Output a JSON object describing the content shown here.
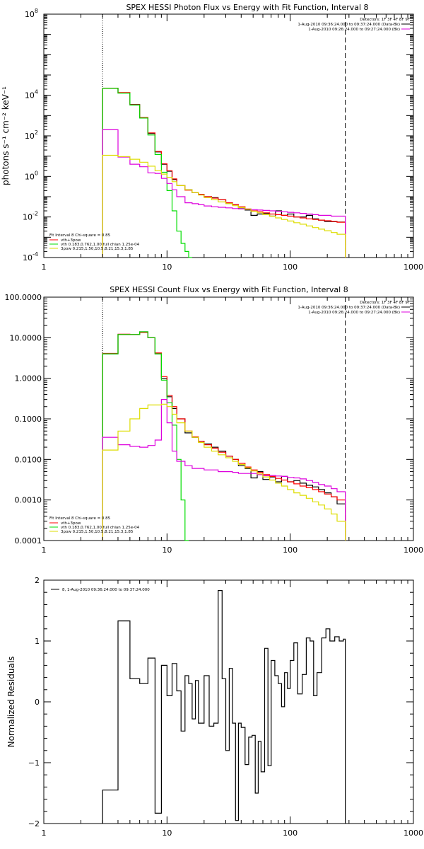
{
  "chart_data": [
    {
      "type": "line",
      "title": "SPEX HESSI Photon Flux vs Energy with Fit Function, Interval 8",
      "ylabel": "photons s⁻¹ cm⁻² keV⁻¹",
      "xlabel": "",
      "xscale": "log",
      "yscale": "log",
      "xlim": [
        1,
        1000
      ],
      "ylim": [
        0.0001,
        100000000
      ],
      "x_ticks": [
        1,
        10,
        100,
        1000
      ],
      "x_tick_labels": [
        "1",
        "10",
        "100",
        "1000"
      ],
      "y_ticks": [
        0.0001,
        0.01,
        1,
        100,
        10000,
        100000000
      ],
      "vlines": [
        3,
        280
      ],
      "legend_top_right": [
        "Detectors: 1F 3F 4F 8F 9F",
        "1-Aug-2010 09:36:24.000 to 09:37:24.000 (Data-Bk)",
        "1-Aug-2010 09:26:24.000 to 09:27:24.000 (Bk)"
      ],
      "legend_bottom_left": [
        "Fit Interval 8   Chi-square = 0.85",
        "vth+3pow",
        "vth 0.183,0.762,1.00  full chian 1.25e-04",
        "3pow 0.215,1.50,10.5,8.21,15.3,1.85"
      ],
      "series": [
        {
          "color": "#000000",
          "edges": [
            3,
            4,
            5,
            6,
            7,
            8,
            9,
            10,
            11,
            12,
            14,
            16,
            18,
            20,
            23,
            26,
            30,
            34,
            38,
            43,
            48,
            54,
            60,
            68,
            76,
            85,
            95,
            107,
            120,
            135,
            152,
            170,
            190,
            215,
            240,
            280
          ],
          "values": [
            22000,
            13000,
            3500,
            800,
            130,
            16,
            4,
            1.8,
            0.7,
            0.35,
            0.22,
            0.16,
            0.13,
            0.1,
            0.09,
            0.07,
            0.05,
            0.04,
            0.028,
            0.022,
            0.012,
            0.014,
            0.015,
            0.011,
            0.02,
            0.012,
            0.014,
            0.01,
            0.01,
            0.012,
            0.008,
            0.007,
            0.006,
            0.0058,
            0.0056
          ]
        },
        {
          "color": "#ff0000",
          "edges": [
            3,
            4,
            5,
            6,
            7,
            8,
            9,
            10,
            11,
            12,
            14,
            16,
            18,
            20,
            23,
            26,
            30,
            34,
            38,
            43,
            48,
            54,
            60,
            68,
            76,
            85,
            95,
            107,
            120,
            135,
            152,
            170,
            190,
            215,
            240,
            280
          ],
          "values": [
            22500,
            13500,
            3400,
            800,
            140,
            17,
            4.2,
            1.9,
            0.75,
            0.35,
            0.21,
            0.16,
            0.13,
            0.1,
            0.085,
            0.07,
            0.05,
            0.04,
            0.032,
            0.025,
            0.02,
            0.018,
            0.016,
            0.014,
            0.013,
            0.012,
            0.011,
            0.01,
            0.009,
            0.008,
            0.0075,
            0.007,
            0.0065,
            0.006,
            0.0055
          ]
        },
        {
          "color": "#00dd00",
          "edges": [
            3,
            4,
            5,
            6,
            7,
            8,
            9,
            10,
            11,
            12,
            13,
            14,
            15,
            16
          ],
          "values": [
            22000,
            12800,
            3300,
            750,
            110,
            12,
            1.6,
            0.2,
            0.02,
            0.002,
            0.0005,
            0.0002,
            0.0001
          ]
        },
        {
          "color": "#dd00dd",
          "edges": [
            3,
            4,
            5,
            6,
            7,
            8,
            9,
            10,
            11,
            12,
            14,
            16,
            18,
            20,
            23,
            26,
            30,
            34,
            38,
            43,
            48,
            54,
            60,
            68,
            76,
            85,
            95,
            107,
            120,
            135,
            152,
            170,
            190,
            215,
            240,
            280
          ],
          "values": [
            200,
            9,
            4,
            3,
            1.5,
            1.4,
            0.8,
            0.45,
            0.22,
            0.1,
            0.05,
            0.045,
            0.04,
            0.035,
            0.032,
            0.03,
            0.028,
            0.026,
            0.025,
            0.024,
            0.023,
            0.022,
            0.021,
            0.02,
            0.019,
            0.018,
            0.017,
            0.016,
            0.015,
            0.014,
            0.013,
            0.012,
            0.012,
            0.011,
            0.011
          ]
        },
        {
          "color": "#dddd00",
          "edges": [
            3,
            4,
            5,
            6,
            7,
            8,
            9,
            10,
            11,
            12,
            14,
            16,
            18,
            20,
            23,
            26,
            30,
            34,
            38,
            43,
            48,
            54,
            60,
            68,
            76,
            85,
            95,
            107,
            120,
            135,
            152,
            170,
            190,
            215,
            240,
            280
          ],
          "values": [
            11,
            9.5,
            7,
            5,
            3.2,
            1.9,
            1.3,
            0.9,
            0.55,
            0.35,
            0.22,
            0.16,
            0.12,
            0.09,
            0.07,
            0.055,
            0.045,
            0.036,
            0.029,
            0.024,
            0.019,
            0.016,
            0.013,
            0.011,
            0.009,
            0.0075,
            0.0063,
            0.0052,
            0.0044,
            0.0036,
            0.003,
            0.0025,
            0.0021,
            0.0017,
            0.0014
          ]
        }
      ]
    },
    {
      "type": "line",
      "title": "SPEX HESSI Count Flux vs Energy with Fit Function, Interval 8",
      "ylabel": "",
      "xlabel": "",
      "xscale": "log",
      "yscale": "log",
      "xlim": [
        1,
        1000
      ],
      "ylim": [
        0.0001,
        100
      ],
      "x_ticks": [
        1,
        10,
        100,
        1000
      ],
      "x_tick_labels": [
        "1",
        "10",
        "100",
        "1000"
      ],
      "y_ticks": [
        0.0001,
        0.001,
        0.01,
        0.1,
        1,
        10,
        100
      ],
      "y_tick_labels": [
        "0.0001",
        "0.0010",
        "0.0100",
        "0.1000",
        "1.0000",
        "10.0000",
        "100.0000"
      ],
      "vlines": [
        3,
        280
      ],
      "legend_top_right": [
        "Detectors: 1F 3F 4F 8F 9F",
        "1-Aug-2010 09:36:24.000 to 09:37:24.000 (Data-Bk)",
        "1-Aug-2010 09:26:24.000 to 09:27:24.000 (Bk)"
      ],
      "legend_bottom_left": [
        "Fit Interval 8   Chi-square = 0.85",
        "vth+3pow",
        "vth 0.183,0.762,1.00  full chian 1.25e-04",
        "3pow 0.215,1.50,10.5,8.21,15.3,1.85"
      ],
      "series": [
        {
          "color": "#000000",
          "edges": [
            3,
            4,
            5,
            6,
            7,
            8,
            9,
            10,
            11,
            12,
            14,
            16,
            18,
            20,
            23,
            26,
            30,
            34,
            38,
            43,
            48,
            54,
            60,
            68,
            76,
            85,
            95,
            107,
            120,
            135,
            152,
            170,
            190,
            215,
            240,
            280
          ],
          "values": [
            4,
            12,
            12,
            14,
            10,
            4,
            1,
            0.35,
            0.18,
            0.1,
            0.045,
            0.035,
            0.028,
            0.024,
            0.02,
            0.016,
            0.012,
            0.01,
            0.007,
            0.006,
            0.0035,
            0.005,
            0.0032,
            0.0037,
            0.0028,
            0.0038,
            0.0028,
            0.003,
            0.0026,
            0.0023,
            0.0021,
            0.0018,
            0.0015,
            0.0012,
            0.0008
          ]
        },
        {
          "color": "#ff0000",
          "edges": [
            3,
            4,
            5,
            6,
            7,
            8,
            9,
            10,
            11,
            12,
            14,
            16,
            18,
            20,
            23,
            26,
            30,
            34,
            38,
            43,
            48,
            54,
            60,
            68,
            76,
            85,
            95,
            107,
            120,
            135,
            152,
            170,
            190,
            215,
            240,
            280
          ],
          "values": [
            4.1,
            12.2,
            12,
            13.5,
            10,
            4.2,
            1.1,
            0.38,
            0.2,
            0.1,
            0.05,
            0.036,
            0.028,
            0.023,
            0.019,
            0.015,
            0.012,
            0.01,
            0.008,
            0.0065,
            0.0055,
            0.0048,
            0.0042,
            0.0038,
            0.0034,
            0.0031,
            0.0028,
            0.0025,
            0.0022,
            0.002,
            0.0018,
            0.0016,
            0.0014,
            0.0012,
            0.001
          ]
        },
        {
          "color": "#00dd00",
          "edges": [
            3,
            4,
            5,
            6,
            7,
            8,
            9,
            10,
            11,
            12,
            13,
            14,
            15
          ],
          "values": [
            4,
            12,
            12,
            14,
            10,
            4,
            0.9,
            0.25,
            0.07,
            0.01,
            0.001,
            0.0001
          ]
        },
        {
          "color": "#dd00dd",
          "edges": [
            3,
            4,
            5,
            6,
            7,
            8,
            9,
            10,
            11,
            12,
            14,
            16,
            18,
            20,
            23,
            26,
            30,
            34,
            38,
            43,
            48,
            54,
            60,
            68,
            76,
            85,
            95,
            107,
            120,
            135,
            152,
            170,
            190,
            215,
            240,
            280
          ],
          "values": [
            0.035,
            0.023,
            0.021,
            0.02,
            0.022,
            0.03,
            0.3,
            0.08,
            0.016,
            0.009,
            0.007,
            0.006,
            0.006,
            0.0055,
            0.0055,
            0.005,
            0.005,
            0.0048,
            0.0045,
            0.0045,
            0.0045,
            0.0042,
            0.004,
            0.004,
            0.0039,
            0.0038,
            0.0036,
            0.0035,
            0.0033,
            0.003,
            0.0027,
            0.0024,
            0.0022,
            0.0019,
            0.0016
          ]
        },
        {
          "color": "#dddd00",
          "edges": [
            3,
            4,
            5,
            6,
            7,
            8,
            9,
            10,
            11,
            12,
            14,
            16,
            18,
            20,
            23,
            26,
            30,
            34,
            38,
            43,
            48,
            54,
            60,
            68,
            76,
            85,
            95,
            107,
            120,
            135,
            152,
            170,
            190,
            215,
            240,
            280
          ],
          "values": [
            0.017,
            0.05,
            0.1,
            0.18,
            0.22,
            0.22,
            0.23,
            0.2,
            0.13,
            0.08,
            0.05,
            0.035,
            0.026,
            0.02,
            0.016,
            0.013,
            0.011,
            0.009,
            0.0075,
            0.0062,
            0.0052,
            0.0044,
            0.0037,
            0.0031,
            0.0026,
            0.0022,
            0.0018,
            0.0015,
            0.0013,
            0.0011,
            0.0009,
            0.00075,
            0.0006,
            0.00045,
            0.0003
          ]
        }
      ]
    },
    {
      "type": "line",
      "title": "",
      "ylabel": "Normalized Residuals",
      "xlabel": "",
      "xscale": "log",
      "yscale": "linear",
      "xlim": [
        1,
        1000
      ],
      "ylim": [
        -2,
        2
      ],
      "x_ticks": [
        1,
        10,
        100,
        1000
      ],
      "x_tick_labels": [
        "1",
        "10",
        "100",
        "1000"
      ],
      "y_ticks": [
        -2,
        -1,
        0,
        1,
        2
      ],
      "y_tick_labels": [
        "−2",
        "−1",
        "0",
        "1",
        "2"
      ],
      "legend": "8,  1-Aug-2010 09:36:24.000 to 09:37:24.000",
      "series": [
        {
          "color": "#000000",
          "edges": [
            3,
            4,
            5,
            6,
            7,
            8,
            9,
            10,
            11,
            12,
            13,
            14,
            15,
            16,
            17,
            18,
            20,
            22,
            24,
            26,
            28,
            30,
            32,
            34,
            36,
            38,
            40,
            43,
            46,
            49,
            52,
            55,
            58,
            62,
            66,
            70,
            75,
            80,
            85,
            90,
            95,
            100,
            107,
            115,
            125,
            135,
            145,
            155,
            165,
            180,
            195,
            210,
            230,
            250,
            270,
            280
          ],
          "values": [
            -1.45,
            1.33,
            0.38,
            0.3,
            0.72,
            -1.83,
            0.6,
            0.1,
            0.63,
            0.18,
            -0.48,
            0.43,
            0.3,
            -0.28,
            0.35,
            -0.35,
            0.43,
            -0.4,
            -0.35,
            1.83,
            0.38,
            -0.8,
            0.55,
            -0.35,
            -1.95,
            -0.35,
            -0.42,
            -1.03,
            -0.58,
            -0.55,
            -1.5,
            -0.65,
            -1.15,
            0.88,
            -1.05,
            0.68,
            0.43,
            0.3,
            -0.08,
            0.48,
            0.22,
            0.68,
            0.97,
            0.13,
            0.45,
            1.05,
            1.0,
            0.1,
            0.48,
            1.05,
            1.2,
            1.0,
            1.07,
            1.0,
            1.03
          ]
        }
      ]
    }
  ]
}
